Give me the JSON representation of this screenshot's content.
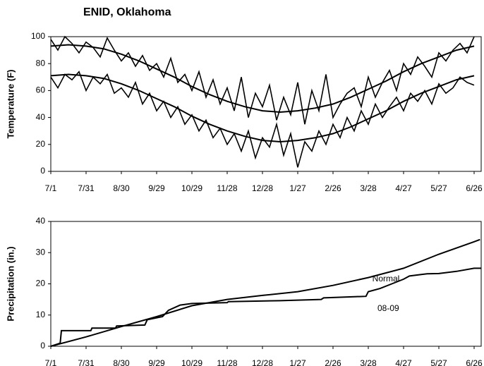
{
  "chart_data": [
    {
      "type": "line",
      "title": "ENID, Oklahoma",
      "y_label": "Temperature (F)",
      "xlim": [
        0,
        366
      ],
      "ylim": [
        0,
        100
      ],
      "yticks": [
        0,
        20,
        40,
        60,
        80,
        100
      ],
      "xticks": [
        {
          "value": 0,
          "label": "7/1"
        },
        {
          "value": 30,
          "label": "7/31"
        },
        {
          "value": 60,
          "label": "8/30"
        },
        {
          "value": 90,
          "label": "9/29"
        },
        {
          "value": 120,
          "label": "10/29"
        },
        {
          "value": 150,
          "label": "11/28"
        },
        {
          "value": 180,
          "label": "12/28"
        },
        {
          "value": 210,
          "label": "1/27"
        },
        {
          "value": 240,
          "label": "2/26"
        },
        {
          "value": 270,
          "label": "3/28"
        },
        {
          "value": 300,
          "label": "4/27"
        },
        {
          "value": 330,
          "label": "5/27"
        },
        {
          "value": 360,
          "label": "6/26"
        }
      ],
      "series": [
        {
          "color": "#000000",
          "x": [
            0,
            6,
            12,
            18,
            24,
            30,
            36,
            42,
            48,
            54,
            60,
            66,
            72,
            78,
            84,
            90,
            96,
            102,
            108,
            114,
            120,
            126,
            132,
            138,
            144,
            150,
            156,
            162,
            168,
            174,
            180,
            186,
            192,
            198,
            204,
            210,
            216,
            222,
            228,
            234,
            240,
            246,
            252,
            258,
            264,
            270,
            276,
            282,
            288,
            294,
            300,
            306,
            312,
            318,
            324,
            330,
            336,
            342,
            348,
            354,
            360
          ],
          "values": [
            98,
            90,
            100,
            95,
            88,
            96,
            92,
            85,
            99,
            90,
            82,
            88,
            78,
            86,
            75,
            80,
            70,
            84,
            66,
            72,
            60,
            74,
            55,
            68,
            50,
            62,
            45,
            70,
            40,
            58,
            48,
            64,
            38,
            55,
            42,
            66,
            35,
            60,
            45,
            72,
            40,
            50,
            58,
            62,
            48,
            70,
            55,
            66,
            75,
            60,
            80,
            72,
            85,
            78,
            70,
            88,
            82,
            90,
            95,
            88,
            100
          ]
        },
        {
          "color": "#000000",
          "x": [
            0,
            6,
            12,
            18,
            24,
            30,
            36,
            42,
            48,
            54,
            60,
            66,
            72,
            78,
            84,
            90,
            96,
            102,
            108,
            114,
            120,
            126,
            132,
            138,
            144,
            150,
            156,
            162,
            168,
            174,
            180,
            186,
            192,
            198,
            204,
            210,
            216,
            222,
            228,
            234,
            240,
            246,
            252,
            258,
            264,
            270,
            276,
            282,
            288,
            294,
            300,
            306,
            312,
            318,
            324,
            330,
            336,
            342,
            348,
            354,
            360
          ],
          "values": [
            70,
            62,
            72,
            68,
            74,
            60,
            70,
            65,
            72,
            58,
            62,
            55,
            66,
            50,
            58,
            45,
            52,
            40,
            48,
            35,
            42,
            30,
            38,
            25,
            32,
            20,
            28,
            15,
            30,
            10,
            25,
            18,
            35,
            12,
            28,
            3,
            22,
            15,
            30,
            20,
            35,
            25,
            40,
            30,
            45,
            35,
            50,
            40,
            48,
            55,
            45,
            58,
            52,
            60,
            50,
            65,
            58,
            62,
            70,
            66,
            64
          ]
        },
        {
          "color": "#000000",
          "x": [
            0,
            15,
            30,
            45,
            60,
            75,
            90,
            105,
            120,
            135,
            150,
            165,
            180,
            195,
            210,
            225,
            240,
            255,
            270,
            285,
            300,
            315,
            330,
            345,
            360
          ],
          "values": [
            93,
            94,
            93,
            91,
            87,
            82,
            76,
            70,
            63,
            57,
            52,
            48,
            45,
            44,
            45,
            47,
            50,
            55,
            61,
            67,
            74,
            80,
            85,
            90,
            93
          ]
        },
        {
          "color": "#000000",
          "x": [
            0,
            15,
            30,
            45,
            60,
            75,
            90,
            105,
            120,
            135,
            150,
            165,
            180,
            195,
            210,
            225,
            240,
            255,
            270,
            285,
            300,
            315,
            330,
            345,
            360
          ],
          "values": [
            71,
            72,
            71,
            69,
            65,
            60,
            54,
            48,
            41,
            35,
            30,
            26,
            23,
            22,
            23,
            25,
            28,
            33,
            39,
            45,
            52,
            58,
            63,
            68,
            71
          ]
        }
      ]
    },
    {
      "type": "line",
      "y_label": "Precipitation  (in.)",
      "xlim": [
        0,
        366
      ],
      "ylim": [
        0,
        40
      ],
      "yticks": [
        0,
        10,
        20,
        30,
        40
      ],
      "xticks": [
        {
          "value": 0,
          "label": "7/1"
        },
        {
          "value": 30,
          "label": "7/31"
        },
        {
          "value": 60,
          "label": "8/30"
        },
        {
          "value": 90,
          "label": "9/29"
        },
        {
          "value": 120,
          "label": "10/29"
        },
        {
          "value": 150,
          "label": "11/28"
        },
        {
          "value": 180,
          "label": "12/28"
        },
        {
          "value": 210,
          "label": "1/27"
        },
        {
          "value": 240,
          "label": "2/26"
        },
        {
          "value": 270,
          "label": "3/28"
        },
        {
          "value": 300,
          "label": "4/27"
        },
        {
          "value": 330,
          "label": "5/27"
        },
        {
          "value": 360,
          "label": "6/26"
        }
      ],
      "series": [
        {
          "name": "Normal",
          "color": "#000000",
          "x": [
            0,
            30,
            60,
            90,
            120,
            150,
            180,
            210,
            240,
            270,
            300,
            330,
            360,
            365
          ],
          "values": [
            0,
            3,
            6.3,
            9.5,
            13,
            15,
            16.3,
            17.5,
            19.5,
            22,
            25,
            29.5,
            33.5,
            34.2
          ]
        },
        {
          "name": "08-09",
          "color": "#000000",
          "x": [
            0,
            4,
            8,
            9,
            34,
            35,
            55,
            56,
            80,
            82,
            95,
            100,
            110,
            120,
            150,
            151,
            195,
            230,
            232,
            268,
            270,
            280,
            290,
            300,
            305,
            315,
            320,
            330,
            345,
            360,
            366
          ],
          "values": [
            0,
            0.5,
            1,
            5,
            5,
            5.8,
            5.8,
            6.5,
            6.8,
            8.5,
            9.5,
            11.5,
            13.2,
            13.7,
            14,
            14.3,
            14.6,
            15,
            15.5,
            16,
            17.5,
            18.5,
            20,
            21.5,
            22.5,
            23,
            23.2,
            23.3,
            24,
            25,
            25
          ]
        }
      ]
    }
  ]
}
